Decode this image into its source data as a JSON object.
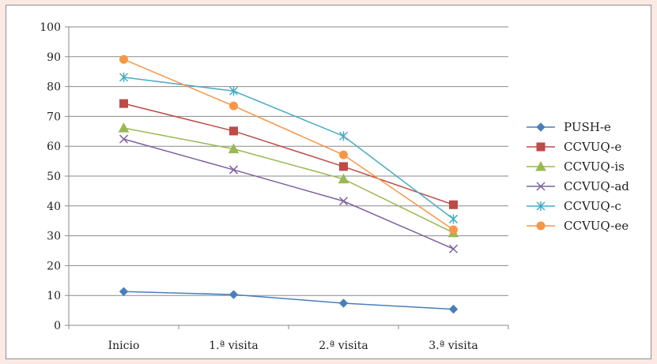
{
  "chart_data": {
    "type": "line",
    "categories": [
      "Inicio",
      "1.ª visita",
      "2.ª visita",
      "3.ª visita"
    ],
    "ylim": [
      0,
      100
    ],
    "yticks": [
      0,
      10,
      20,
      30,
      40,
      50,
      60,
      70,
      80,
      90,
      100
    ],
    "grid": "horizontal",
    "legend_position": "right",
    "series": [
      {
        "name": "PUSH-e",
        "values": [
          11.3,
          10.3,
          7.4,
          5.4
        ],
        "color": "#4a7ebb",
        "marker": "diamond"
      },
      {
        "name": "CCVUQ-e",
        "values": [
          74.3,
          65.1,
          53.2,
          40.4
        ],
        "color": "#be4b48",
        "marker": "square"
      },
      {
        "name": "CCVUQ-is",
        "values": [
          66.1,
          59.1,
          49.0,
          31.0
        ],
        "color": "#98b954",
        "marker": "triangle"
      },
      {
        "name": "CCVUQ-ad",
        "values": [
          62.4,
          52.1,
          41.6,
          25.6
        ],
        "color": "#7d60a0",
        "marker": "x"
      },
      {
        "name": "CCVUQ-c",
        "values": [
          83.1,
          78.5,
          63.4,
          35.6
        ],
        "color": "#46aac5",
        "marker": "star"
      },
      {
        "name": "CCVUQ-ee",
        "values": [
          89.1,
          73.5,
          57.1,
          32.0
        ],
        "color": "#f79646",
        "marker": "circle"
      }
    ]
  }
}
